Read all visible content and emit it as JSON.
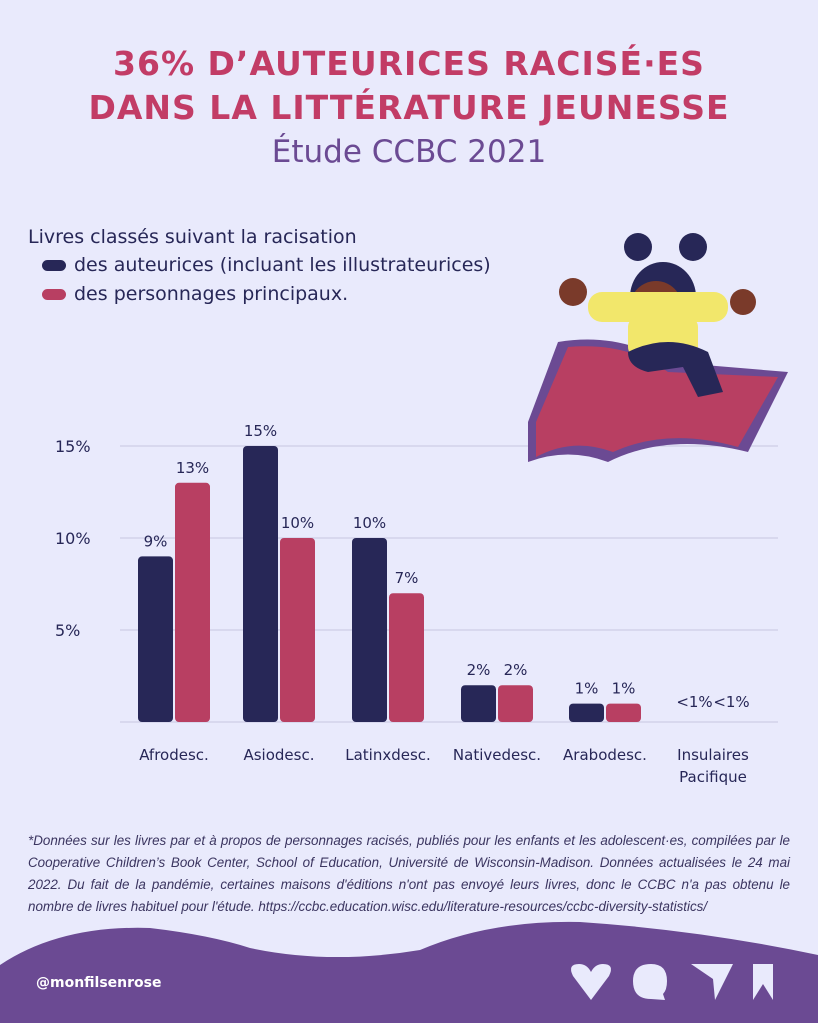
{
  "header": {
    "title_line1": "36% D’AUTEURICES RACISÉ·ES",
    "title_line2": "DANS LA LITTÉRATURE JEUNESSE",
    "subtitle": "Étude CCBC 2021"
  },
  "colors": {
    "background": "#e9eafc",
    "authors": "#272757",
    "characters": "#b83f62",
    "title": "#c23c66",
    "accent": "#6b4a93"
  },
  "chart_data": {
    "type": "bar",
    "title": "Livres classés suivant la racisation",
    "categories": [
      "Afrodesc.",
      "Asiodesc.",
      "Latinxdesc.",
      "Nativedesc.",
      "Arabodesc.",
      "Insulaires\nPacifique"
    ],
    "series": [
      {
        "name": "des auteurices (incluant les illustrateurices)",
        "values": [
          9,
          15,
          10,
          2,
          1,
          0.5
        ],
        "labels": [
          "9%",
          "15%",
          "10%",
          "2%",
          "1%",
          "<1%"
        ]
      },
      {
        "name": "des personnages principaux.",
        "values": [
          13,
          10,
          7,
          2,
          1,
          0.5
        ],
        "labels": [
          "13%",
          "10%",
          "7%",
          "2%",
          "1%",
          "<1%"
        ]
      }
    ],
    "yticks": [
      "5%",
      "10%",
      "15%"
    ],
    "ytick_values": [
      5,
      10,
      15
    ],
    "ylim": [
      0,
      15
    ],
    "grid": true,
    "legend": "top-left"
  },
  "footnote": "*Données sur les livres par et à propos de personnages racisés, publiés pour les enfants et les adolescent·es, compilées par le Cooperative Children’s Book Center, School of Education, Université de Wisconsin-Madison. Données actualisées le 24 mai 2022. Du fait de la pandémie, certaines maisons d'éditions n'ont pas envoyé leurs livres, donc le CCBC n'a pas obtenu le nombre de livres habituel pour l'étude. https://ccbc.education.wisc.edu/literature-resources/ccbc-diversity-statistics/",
  "footer": {
    "handle": "@monfilsenrose"
  }
}
